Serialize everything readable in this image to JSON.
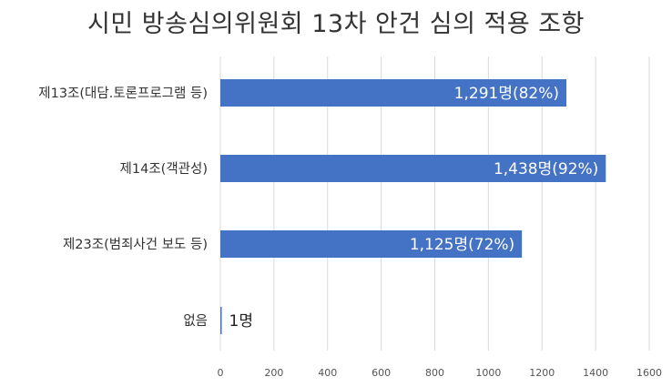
{
  "chart_data": {
    "type": "bar",
    "orientation": "horizontal",
    "title": "시민 방송심의위원회 13차 안건 심의 적용 조항",
    "xlabel": "",
    "ylabel": "",
    "categories": [
      "제13조(대담.토론프로그램 등)",
      "제14조(객관성)",
      "제23조(범죄사건 보도 등)",
      "없음"
    ],
    "values": [
      1291,
      1438,
      1125,
      1
    ],
    "data_labels": [
      "1,291명(82%)",
      "1,438명(92%)",
      "1,125명(72%)",
      "1명"
    ],
    "xlim": [
      0,
      1600
    ],
    "x_ticks": [
      0,
      200,
      400,
      600,
      800,
      1000,
      1200,
      1400,
      1600
    ],
    "grid": "vertical",
    "legend": "none",
    "colors": {
      "bar": "#4472C4",
      "grid": "#D9D9D9"
    }
  }
}
